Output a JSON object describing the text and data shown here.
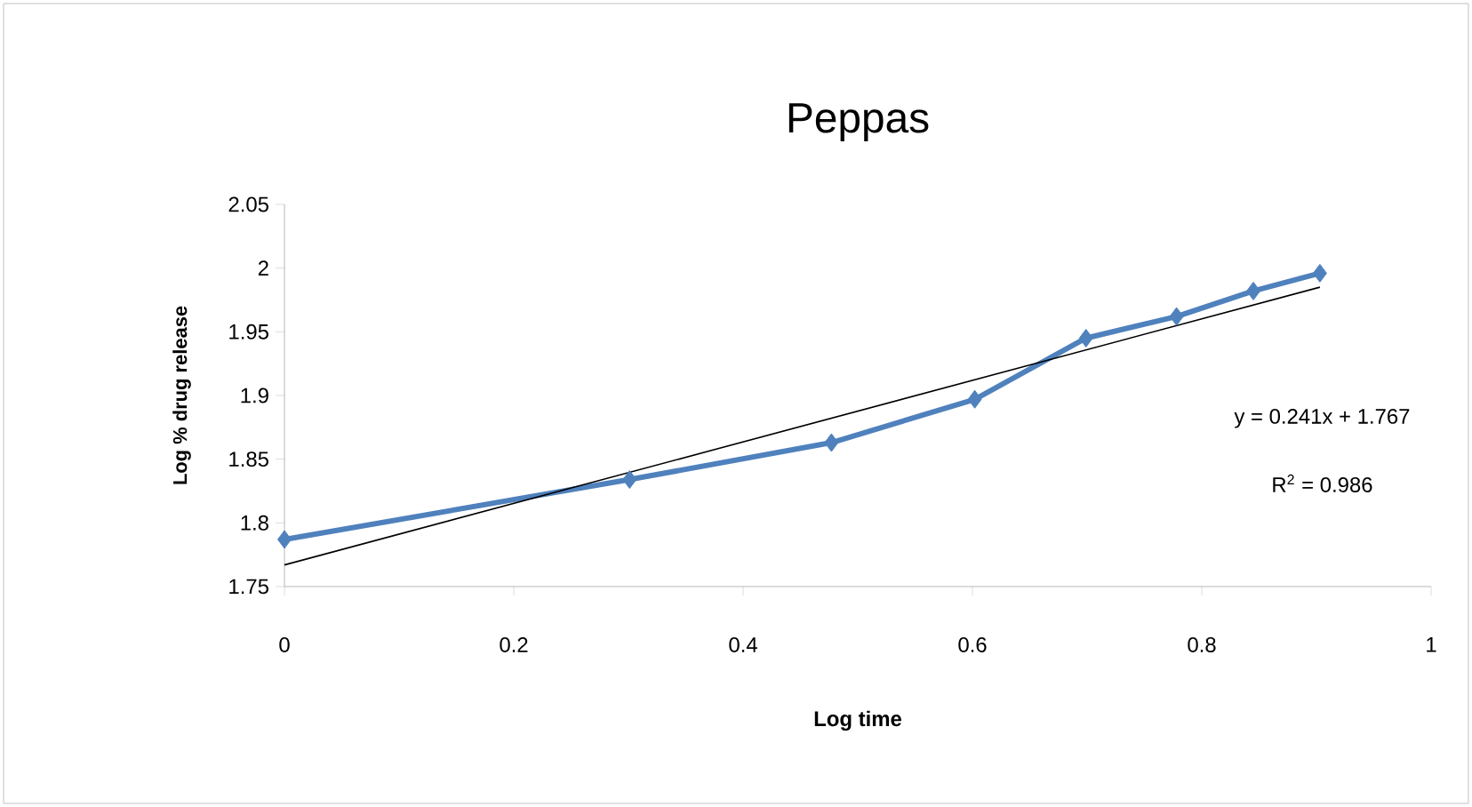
{
  "chart_data": {
    "type": "line",
    "title": "Peppas",
    "xlabel": "Log time",
    "ylabel": "Log % drug  release",
    "series": [
      {
        "color": "#4f81bd",
        "marker": "diamond",
        "x": [
          0,
          0.301,
          0.477,
          0.602,
          0.699,
          0.778,
          0.845,
          0.903
        ],
        "values": [
          1.787,
          1.834,
          1.863,
          1.897,
          1.945,
          1.962,
          1.982,
          1.996
        ]
      },
      {
        "color": "#000000",
        "marker": "none",
        "x": [
          0,
          0.903
        ],
        "values": [
          1.767,
          1.985
        ]
      }
    ],
    "annotations": [
      "y = 0.241x  + 1.767",
      "R$^{2}$ = 0.986"
    ],
    "xlim": [
      0,
      1
    ],
    "xticks": [
      0,
      0.2,
      0.4,
      0.6,
      0.8,
      1
    ],
    "ylim": [
      1.75,
      2.05
    ],
    "yticks": [
      1.75,
      1.8,
      1.85,
      1.9,
      1.95,
      2,
      2.05
    ],
    "grid": false
  }
}
